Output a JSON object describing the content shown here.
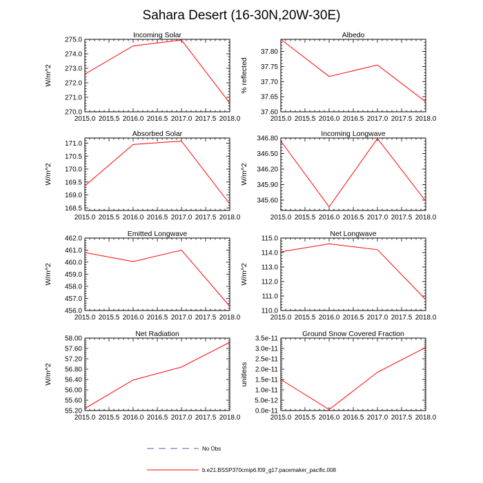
{
  "figure": {
    "title": "Sahara Desert (16-30N,20W-30E)"
  },
  "legend": {
    "obs_label": "No Obs",
    "obs_color": "#5a5ab4",
    "model_label": "b.e21.BSSP370cmip6.f09_g17.pacemaker_pacific.008",
    "model_color": "#ff0000"
  },
  "chart_data": [
    {
      "type": "line",
      "title": "Incoming Solar",
      "ylabel": "W/m^2",
      "x": [
        2015,
        2016,
        2017,
        2018
      ],
      "series": [
        {
          "values": [
            272.6,
            274.55,
            274.95,
            270.6
          ]
        }
      ],
      "xlim": [
        2015,
        2018
      ],
      "ylim": [
        270,
        275
      ],
      "xticks": [
        "2015.0",
        "2015.5",
        "2016.0",
        "2016.5",
        "2017.0",
        "2017.5",
        "2018.0"
      ],
      "yticks": [
        "270.0",
        "271.0",
        "272.0",
        "273.0",
        "274.0",
        "275.0"
      ]
    },
    {
      "type": "line",
      "title": "Albedo",
      "ylabel": "% reflected",
      "x": [
        2015,
        2016,
        2017,
        2018
      ],
      "series": [
        {
          "values": [
            37.84,
            37.717,
            37.755,
            37.633
          ]
        }
      ],
      "xlim": [
        2015,
        2018
      ],
      "ylim": [
        37.6,
        37.84
      ],
      "xticks": [
        "2015.0",
        "2015.5",
        "2016.0",
        "2016.5",
        "2017.0",
        "2017.5",
        "2018.0"
      ],
      "yticks": [
        "37.60",
        "37.65",
        "37.70",
        "37.75",
        "37.80"
      ]
    },
    {
      "type": "line",
      "title": "Absorbed Solar",
      "ylabel": "W/m^2",
      "x": [
        2015,
        2016,
        2017,
        2018
      ],
      "series": [
        {
          "values": [
            169.35,
            170.95,
            171.08,
            168.65
          ]
        }
      ],
      "xlim": [
        2015,
        2018
      ],
      "ylim": [
        168.4,
        171.2
      ],
      "xticks": [
        "2015.0",
        "2015.5",
        "2016.0",
        "2016.5",
        "2017.0",
        "2017.5",
        "2018.0"
      ],
      "yticks": [
        "168.5",
        "169.0",
        "169.5",
        "170.0",
        "170.5",
        "171.0"
      ]
    },
    {
      "type": "line",
      "title": "Incoming Longwave",
      "ylabel": "W/m^2",
      "x": [
        2015,
        2016,
        2017,
        2018
      ],
      "series": [
        {
          "values": [
            346.74,
            345.47,
            346.79,
            345.58
          ]
        }
      ],
      "xlim": [
        2015,
        2018
      ],
      "ylim": [
        345.4,
        346.8
      ],
      "xticks": [
        "2015.0",
        "2015.5",
        "2016.0",
        "2016.5",
        "2017.0",
        "2017.5",
        "2018.0"
      ],
      "yticks": [
        "345.60",
        "345.90",
        "346.20",
        "346.50",
        "346.80"
      ]
    },
    {
      "type": "line",
      "title": "Emitted Longwave",
      "ylabel": "W/m^2",
      "x": [
        2015,
        2016,
        2017,
        2018
      ],
      "series": [
        {
          "values": [
            460.8,
            460.05,
            461.0,
            456.35
          ]
        }
      ],
      "xlim": [
        2015,
        2018
      ],
      "ylim": [
        456,
        462
      ],
      "xticks": [
        "2015.0",
        "2015.5",
        "2016.0",
        "2016.5",
        "2017.0",
        "2017.5",
        "2018.0"
      ],
      "yticks": [
        "456.0",
        "457.0",
        "458.0",
        "459.0",
        "460.0",
        "461.0",
        "462.0"
      ]
    },
    {
      "type": "line",
      "title": "Net Longwave",
      "ylabel": "W/m^2",
      "x": [
        2015,
        2016,
        2017,
        2018
      ],
      "series": [
        {
          "values": [
            114.05,
            114.6,
            114.2,
            110.75
          ]
        }
      ],
      "xlim": [
        2015,
        2018
      ],
      "ylim": [
        110,
        115
      ],
      "xticks": [
        "2015.0",
        "2015.5",
        "2016.0",
        "2016.5",
        "2017.0",
        "2017.5",
        "2018.0"
      ],
      "yticks": [
        "110.0",
        "111.0",
        "112.0",
        "113.0",
        "114.0",
        "115.0"
      ]
    },
    {
      "type": "line",
      "title": "Net Radiation",
      "ylabel": "W/m^2",
      "x": [
        2015,
        2016,
        2017,
        2018
      ],
      "series": [
        {
          "values": [
            55.28,
            56.38,
            56.88,
            57.84
          ]
        }
      ],
      "xlim": [
        2015,
        2018
      ],
      "ylim": [
        55.2,
        58.0
      ],
      "xticks": [
        "2015.0",
        "2015.5",
        "2016.0",
        "2016.5",
        "2017.0",
        "2017.5",
        "2018.0"
      ],
      "yticks": [
        "55.20",
        "55.60",
        "56.00",
        "56.40",
        "56.80",
        "57.20",
        "57.60",
        "58.00"
      ]
    },
    {
      "type": "line",
      "title": "Ground Snow Covered Fraction",
      "ylabel": "unitless",
      "x": [
        2015,
        2016,
        2017,
        2018
      ],
      "series": [
        {
          "values": [
            1.5e-11,
            5e-13,
            1.85e-11,
            3.05e-11
          ]
        }
      ],
      "xlim": [
        2015,
        2018
      ],
      "ylim": [
        0,
        3.5e-11
      ],
      "xticks": [
        "2015.0",
        "2015.5",
        "2016.0",
        "2016.5",
        "2017.0",
        "2017.5",
        "2018.0"
      ],
      "yticks": [
        "0.0e-11",
        "5.0e-12",
        "1.0e-11",
        "1.5e-11",
        "2.0e-11",
        "2.5e-11",
        "3.0e-11",
        "3.5e-11"
      ]
    }
  ]
}
